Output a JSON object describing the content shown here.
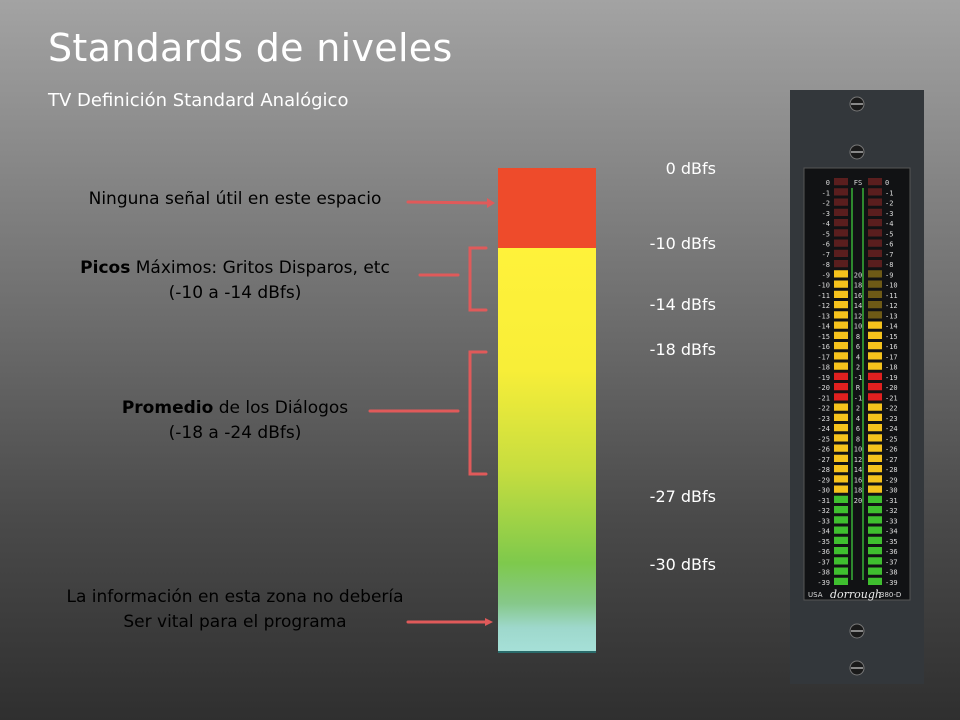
{
  "title": "Standards de niveles",
  "subtitle": "TV Definición Standard Analógico",
  "annotations": {
    "no_signal": "Ninguna señal útil en este espacio",
    "peaks_bold": "Picos",
    "peaks_rest": " Máximos: Gritos Disparos, etc",
    "peaks_range": "(-10 a -14 dBfs)",
    "average_bold": "Promedio",
    "average_rest": " de los Diálogos",
    "average_range": "(-18 a -24 dBfs)",
    "info_line1": "La información en esta zona no debería",
    "info_line2": "Ser vital para el programa"
  },
  "db_labels": [
    "0 dBfs",
    "-10 dBfs",
    "-14 dBfs",
    "-18 dBfs",
    "-27 dBfs",
    "-30 dBfs"
  ],
  "colors": {
    "red_zone": "#ee4b2b",
    "yellow_zone": "#fff23a",
    "green_zone": "#7ec94c",
    "cyan_zone": "#a6e0d8",
    "connector": "#e05a5a"
  },
  "meter": {
    "brand": "dorrough",
    "model": "380-D",
    "country": "USA",
    "left_scale": [
      "0",
      "-1",
      "-2",
      "-3",
      "-4",
      "-5",
      "-6",
      "-7",
      "-8",
      "-9",
      "-10",
      "-11",
      "-12",
      "-13",
      "-14",
      "-15",
      "-16",
      "-17",
      "-18",
      "-19",
      "-20",
      "-21",
      "-22",
      "-23",
      "-24",
      "-25",
      "-26",
      "-27",
      "-28",
      "-29",
      "-30",
      "-31",
      "-32",
      "-33",
      "-34",
      "-35",
      "-36",
      "-37",
      "-38",
      "-39"
    ],
    "center_scale": [
      "FS",
      "",
      "",
      "",
      "",
      "",
      "",
      "",
      "",
      "20",
      "18",
      "16",
      "14",
      "12",
      "10",
      "8",
      "6",
      "4",
      "2",
      "-1",
      "R",
      "-1",
      "2",
      "4",
      "6",
      "8",
      "10",
      "12",
      "14",
      "16",
      "18",
      "20"
    ],
    "right_scale": [
      "0",
      "-1",
      "-2",
      "-3",
      "-4",
      "-5",
      "-6",
      "-7",
      "-8",
      "-9",
      "-10",
      "-11",
      "-12",
      "-13",
      "-14",
      "-15",
      "-16",
      "-17",
      "-18",
      "-19",
      "-20",
      "-21",
      "-22",
      "-23",
      "-24",
      "-25",
      "-26",
      "-27",
      "-28",
      "-29",
      "-30",
      "-31",
      "-32",
      "-33",
      "-34",
      "-35",
      "-36",
      "-37",
      "-38",
      "-39"
    ],
    "left_lit_from": 9,
    "right_lit_from": 14
  }
}
